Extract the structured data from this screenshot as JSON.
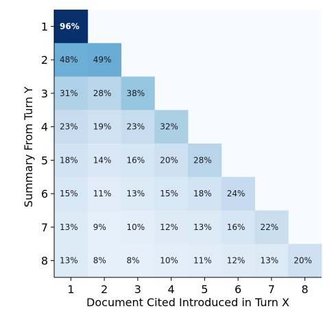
{
  "chart_data": {
    "type": "heatmap",
    "xlabel": "Document Cited Introduced in Turn X",
    "ylabel": "Summary From Turn Y",
    "x_categories": [
      "1",
      "2",
      "3",
      "4",
      "5",
      "6",
      "7",
      "8"
    ],
    "y_categories": [
      "1",
      "2",
      "3",
      "4",
      "5",
      "6",
      "7",
      "8"
    ],
    "value_format": "percent",
    "colormap": "Blues",
    "vmin": 0,
    "vmax": 96,
    "values": [
      [
        96,
        null,
        null,
        null,
        null,
        null,
        null,
        null
      ],
      [
        48,
        49,
        null,
        null,
        null,
        null,
        null,
        null
      ],
      [
        31,
        28,
        38,
        null,
        null,
        null,
        null,
        null
      ],
      [
        23,
        19,
        23,
        32,
        null,
        null,
        null,
        null
      ],
      [
        18,
        14,
        16,
        20,
        28,
        null,
        null,
        null
      ],
      [
        15,
        11,
        13,
        15,
        18,
        24,
        null,
        null
      ],
      [
        13,
        9,
        10,
        12,
        13,
        16,
        22,
        null
      ],
      [
        13,
        8,
        8,
        10,
        11,
        12,
        13,
        20
      ]
    ],
    "empty_cell_color": "#f7fbff",
    "grid": false,
    "legend": "none"
  }
}
